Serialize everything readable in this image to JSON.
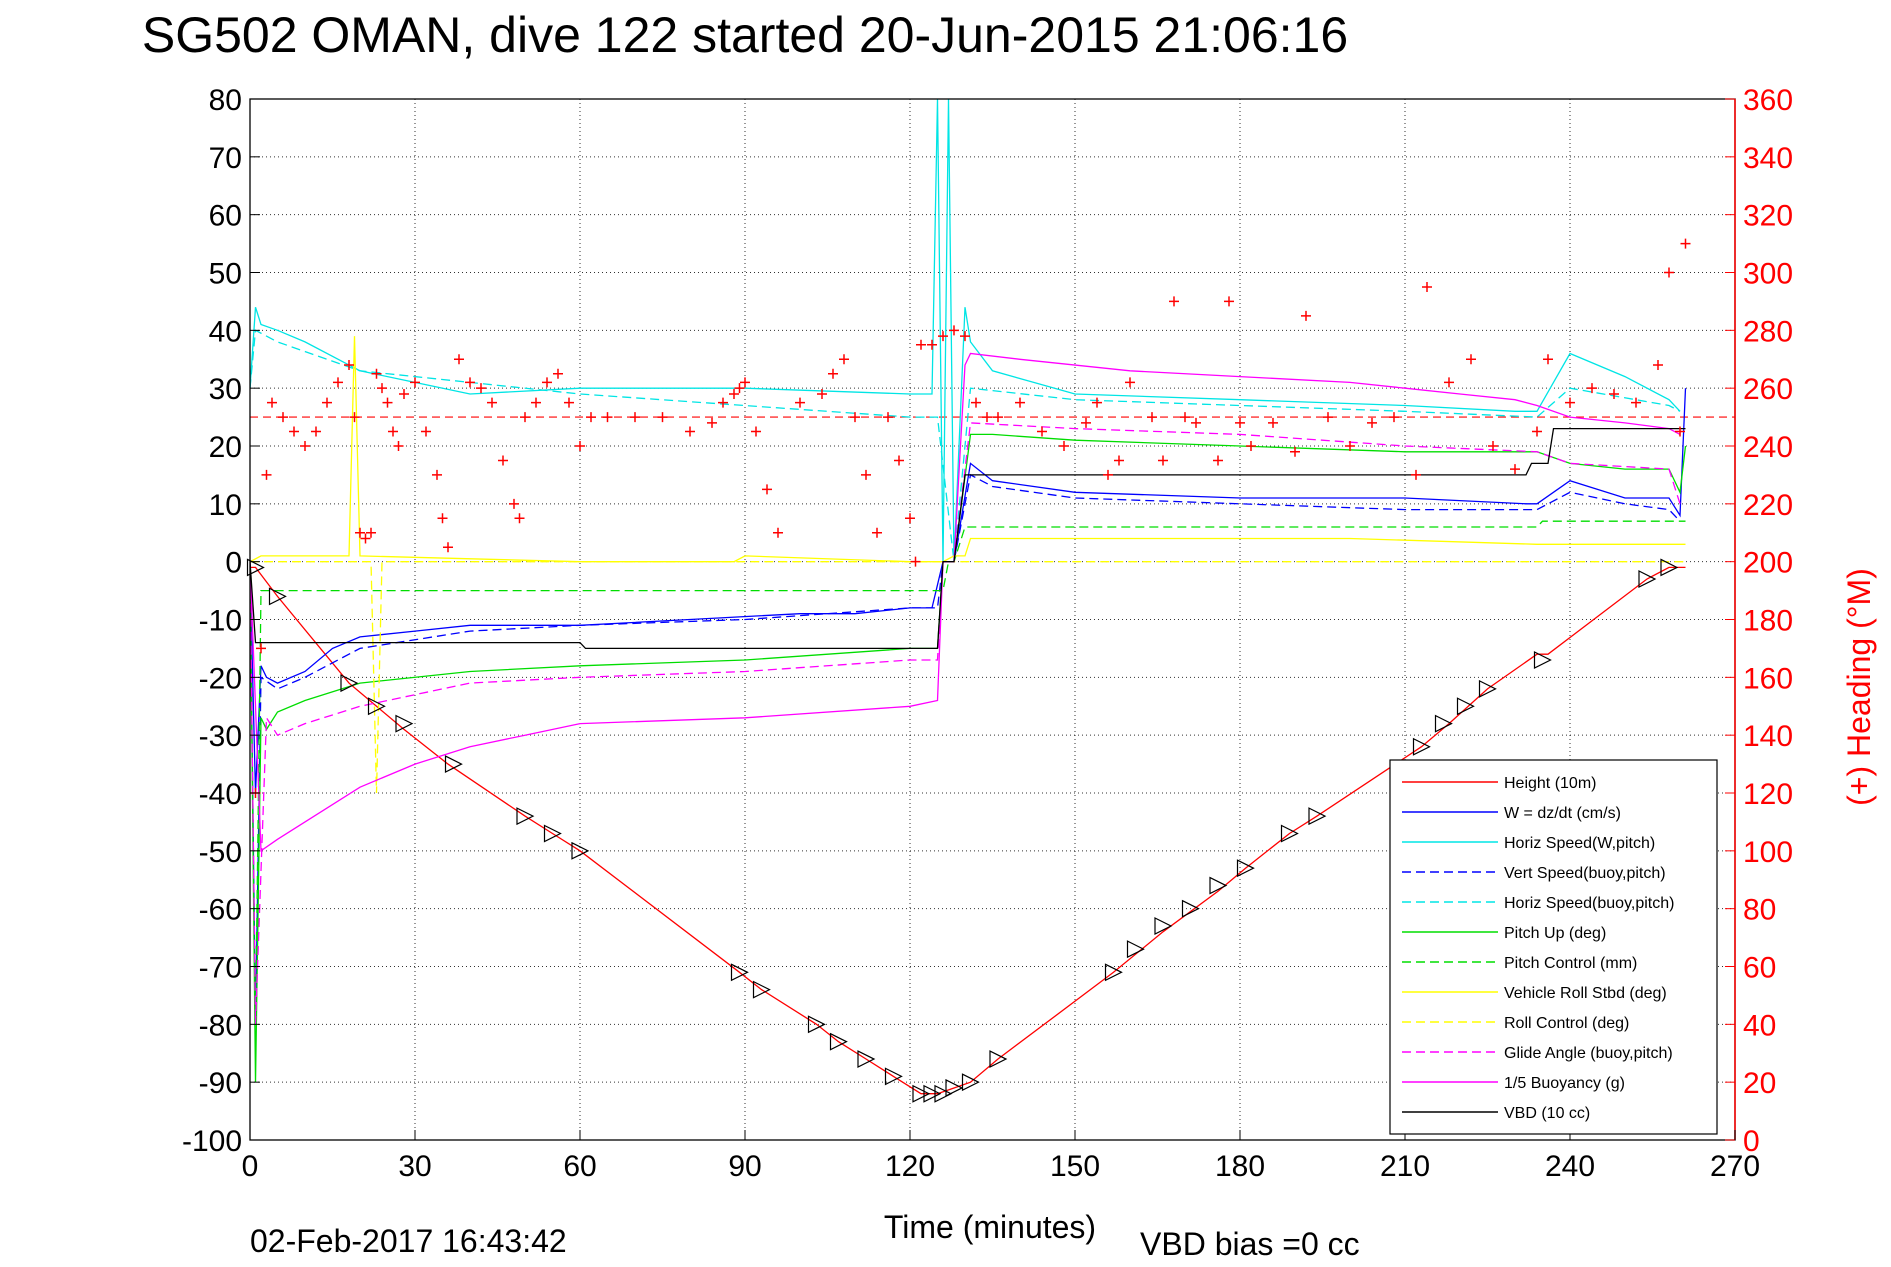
{
  "chart_data": {
    "type": "line",
    "title": "SG502 OMAN, dive 122 started 20-Jun-2015 21:06:16",
    "xlabel": "Time (minutes)",
    "ylabel_right": "(+) Heading (°M)",
    "xlim": [
      0,
      270
    ],
    "ylim": [
      -100,
      80
    ],
    "ylim_right": [
      0,
      360
    ],
    "x_ticks": [
      "0",
      "30",
      "60",
      "90",
      "120",
      "150",
      "180",
      "210",
      "240",
      "270"
    ],
    "y_ticks": [
      "80",
      "70",
      "60",
      "50",
      "40",
      "30",
      "20",
      "10",
      "0",
      "-10",
      "-20",
      "-30",
      "-40",
      "-50",
      "-60",
      "-70",
      "-80",
      "-90",
      "-100"
    ],
    "y_ticks_right": [
      "360",
      "340",
      "320",
      "300",
      "280",
      "260",
      "240",
      "220",
      "200",
      "180",
      "160",
      "140",
      "120",
      "100",
      "80",
      "60",
      "40",
      "20",
      "0"
    ],
    "grid": true,
    "legend_position": "bottom-right",
    "footer_date": "02-Feb-2017 16:43:42",
    "footer_note": "VBD bias =0 cc",
    "heading_target_deg": 250,
    "series": [
      {
        "name": "Height (10m)",
        "color": "#ff0000",
        "style": "solid",
        "x": [
          0,
          1,
          5,
          18,
          28,
          36,
          50,
          55,
          60,
          89,
          93,
          103,
          107,
          112,
          117,
          122,
          125,
          128,
          131,
          136,
          157,
          166,
          176,
          181,
          189,
          194,
          213,
          218,
          225,
          234,
          236,
          254,
          258,
          261
        ],
        "y": [
          -1,
          -1,
          -6,
          -21,
          -29,
          -35,
          -44,
          -47,
          -50,
          -71,
          -74,
          -80,
          -83,
          -86,
          -89,
          -92,
          -92,
          -91,
          -90,
          -86,
          -71,
          -64,
          -57,
          -53,
          -47,
          -44,
          -32,
          -28,
          -22,
          -16,
          -16,
          -3,
          -1,
          -1
        ]
      },
      {
        "name": "W = dz/dt (cm/s)",
        "color": "#0000ff",
        "style": "solid",
        "x": [
          0,
          1,
          2,
          3,
          5,
          10,
          15,
          20,
          30,
          40,
          60,
          80,
          100,
          110,
          120,
          124,
          126,
          128,
          131,
          135,
          150,
          180,
          210,
          232,
          234,
          240,
          250,
          258,
          260,
          261
        ],
        "y": [
          -1,
          -40,
          -18,
          -20,
          -21,
          -19,
          -15,
          -13,
          -12,
          -11,
          -11,
          -10,
          -9,
          -9,
          -8,
          -8,
          0,
          0,
          17,
          14,
          12,
          11,
          11,
          10,
          10,
          14,
          11,
          11,
          8,
          30
        ]
      },
      {
        "name": "Horiz Speed(W,pitch)",
        "color": "#00e5e5",
        "style": "solid",
        "x": [
          0,
          1,
          2,
          5,
          10,
          20,
          40,
          60,
          90,
          120,
          124,
          125,
          126,
          127,
          128,
          130,
          131,
          135,
          150,
          180,
          210,
          230,
          234,
          240,
          250,
          258,
          260
        ],
        "y": [
          30,
          44,
          41,
          40,
          38,
          33,
          29,
          30,
          30,
          29,
          29,
          80,
          0,
          80,
          0,
          44,
          38,
          33,
          29,
          28,
          27,
          26,
          26,
          36,
          32,
          28,
          26
        ]
      },
      {
        "name": "Vert Speed(buoy,pitch)",
        "color": "#0000ff",
        "style": "dashed",
        "x": [
          0,
          1,
          2,
          5,
          10,
          20,
          40,
          60,
          90,
          120,
          125,
          126,
          128,
          131,
          135,
          150,
          180,
          210,
          232,
          234,
          240,
          250,
          258,
          260
        ],
        "y": [
          -1,
          -80,
          -20,
          -22,
          -20,
          -15,
          -12,
          -11,
          -10,
          -8,
          -8,
          0,
          0,
          15,
          13,
          11,
          10,
          9,
          9,
          9,
          12,
          10,
          9,
          7
        ]
      },
      {
        "name": "Horiz Speed(buoy,pitch)",
        "color": "#00e5e5",
        "style": "dashed",
        "x": [
          0,
          1,
          5,
          20,
          60,
          120,
          125,
          128,
          131,
          150,
          180,
          210,
          234,
          240,
          258,
          260
        ],
        "y": [
          30,
          40,
          38,
          33,
          29,
          25,
          25,
          0,
          30,
          28,
          27,
          26,
          25,
          30,
          27,
          26
        ]
      },
      {
        "name": "Pitch Up (deg)",
        "color": "#00dd00",
        "style": "solid",
        "x": [
          0,
          1,
          2,
          3,
          5,
          10,
          20,
          40,
          60,
          90,
          120,
          125,
          126,
          128,
          131,
          135,
          150,
          180,
          210,
          232,
          234,
          240,
          250,
          258,
          260,
          261
        ],
        "y": [
          0,
          -90,
          -27,
          -29,
          -26,
          -24,
          -21,
          -19,
          -18,
          -17,
          -15,
          -15,
          0,
          0,
          22,
          22,
          21,
          20,
          19,
          19,
          19,
          17,
          16,
          16,
          12,
          20
        ]
      },
      {
        "name": "Pitch Control (mm)",
        "color": "#00dd00",
        "style": "dashed",
        "x": [
          0,
          1,
          2,
          126,
          127,
          128,
          130,
          234,
          235,
          261
        ],
        "y": [
          0,
          -80,
          -5,
          -5,
          0,
          0,
          6,
          6,
          7,
          7
        ]
      },
      {
        "name": "Vehicle Roll Stbd (deg)",
        "color": "#ffff00",
        "style": "solid",
        "x": [
          0,
          2,
          5,
          18,
          19,
          20,
          60,
          88,
          90,
          120,
          126,
          128,
          130,
          131,
          150,
          200,
          234,
          240,
          255,
          260,
          261
        ],
        "y": [
          0,
          1,
          1,
          1,
          39,
          1,
          0,
          0,
          1,
          0,
          0,
          1,
          1,
          4,
          4,
          4,
          3,
          3,
          3,
          3,
          3
        ]
      },
      {
        "name": "Roll Control (deg)",
        "color": "#ffff00",
        "style": "dashed",
        "x": [
          0,
          2,
          5,
          22,
          23,
          24,
          126,
          128,
          131,
          200,
          234,
          240,
          261
        ],
        "y": [
          0,
          0,
          0,
          0,
          -40,
          0,
          0,
          0,
          0,
          0,
          0,
          0,
          0
        ]
      },
      {
        "name": "Glide Angle (buoy,pitch)",
        "color": "#ff00ff",
        "style": "dashed",
        "x": [
          0,
          1,
          3,
          5,
          10,
          20,
          40,
          60,
          90,
          120,
          125,
          126,
          128,
          131,
          150,
          180,
          210,
          234,
          240,
          258,
          260
        ],
        "y": [
          0,
          -80,
          -27,
          -30,
          -28,
          -25,
          -21,
          -20,
          -19,
          -17,
          -17,
          0,
          0,
          24,
          23,
          22,
          20,
          19,
          17,
          16,
          10
        ]
      },
      {
        "name": "1/5 Buoyancy (g)",
        "color": "#ff00ff",
        "style": "solid",
        "x": [
          0,
          2,
          5,
          10,
          20,
          30,
          40,
          50,
          60,
          90,
          120,
          125,
          126,
          128,
          130,
          131,
          140,
          160,
          180,
          200,
          210,
          220,
          230,
          234,
          240,
          250,
          258,
          260
        ],
        "y": [
          0,
          -50,
          -48,
          -45,
          -39,
          -35,
          -32,
          -30,
          -28,
          -27,
          -25,
          -24,
          0,
          0,
          34,
          36,
          35,
          33,
          32,
          31,
          30,
          29,
          28,
          27,
          25,
          24,
          23,
          22
        ]
      },
      {
        "name": "VBD (10 cc)",
        "color": "#000000",
        "style": "solid",
        "x": [
          0,
          1,
          2,
          60,
          61,
          125,
          126,
          128,
          130,
          131,
          232,
          233,
          236,
          237,
          261
        ],
        "y": [
          0,
          -14,
          -14,
          -14,
          -15,
          -15,
          0,
          0,
          15,
          15,
          15,
          17,
          17,
          23,
          23
        ]
      },
      {
        "name": "Heading",
        "color": "#ff0000",
        "style": "plus-markers",
        "axis": "right",
        "x": [
          1,
          2,
          3,
          4,
          6,
          8,
          10,
          12,
          14,
          16,
          18,
          19,
          20,
          21,
          22,
          23,
          24,
          25,
          26,
          27,
          28,
          30,
          32,
          34,
          35,
          36,
          38,
          40,
          42,
          44,
          46,
          48,
          49,
          50,
          52,
          54,
          56,
          58,
          60,
          62,
          65,
          70,
          75,
          80,
          84,
          86,
          88,
          89,
          90,
          92,
          94,
          96,
          100,
          104,
          106,
          108,
          110,
          112,
          114,
          116,
          118,
          120,
          121,
          122,
          124,
          126,
          128,
          130,
          132,
          134,
          136,
          140,
          144,
          148,
          152,
          154,
          156,
          158,
          160,
          164,
          166,
          168,
          170,
          172,
          176,
          178,
          180,
          182,
          186,
          190,
          192,
          196,
          200,
          204,
          208,
          212,
          214,
          218,
          222,
          226,
          230,
          234,
          236,
          240,
          244,
          248,
          252,
          256,
          258,
          260,
          261
        ],
        "y": [
          120,
          170,
          230,
          255,
          250,
          245,
          240,
          245,
          255,
          262,
          268,
          250,
          210,
          208,
          210,
          265,
          260,
          255,
          245,
          240,
          258,
          262,
          245,
          230,
          215,
          205,
          270,
          262,
          260,
          255,
          235,
          220,
          215,
          250,
          255,
          262,
          265,
          255,
          240,
          250,
          250,
          250,
          250,
          245,
          248,
          255,
          258,
          260,
          262,
          245,
          225,
          210,
          255,
          258,
          265,
          270,
          250,
          230,
          210,
          250,
          235,
          215,
          200,
          275,
          275,
          278,
          280,
          278,
          255,
          250,
          250,
          255,
          245,
          240,
          248,
          255,
          230,
          235,
          262,
          250,
          235,
          290,
          250,
          248,
          235,
          290,
          248,
          240,
          248,
          238,
          285,
          250,
          240,
          248,
          250,
          230,
          295,
          262,
          270,
          240,
          232,
          245,
          270,
          255,
          260,
          258,
          255,
          268,
          300,
          245,
          310
        ]
      }
    ],
    "markers": {
      "name": "Height triangles",
      "color": "#000000",
      "x": [
        1,
        5,
        18,
        23,
        28,
        37,
        50,
        55,
        60,
        89,
        93,
        103,
        107,
        112,
        117,
        122,
        124,
        126,
        128,
        131,
        136,
        157,
        161,
        166,
        171,
        176,
        181,
        189,
        194,
        213,
        217,
        221,
        225,
        235,
        254,
        258
      ],
      "y": [
        -1,
        -6,
        -21,
        -25,
        -28,
        -35,
        -44,
        -47,
        -50,
        -71,
        -74,
        -80,
        -83,
        -86,
        -89,
        -92,
        -92,
        -92,
        -91,
        -90,
        -86,
        -71,
        -67,
        -63,
        -60,
        -56,
        -53,
        -47,
        -44,
        -32,
        -28,
        -25,
        -22,
        -17,
        -3,
        -1
      ]
    }
  }
}
